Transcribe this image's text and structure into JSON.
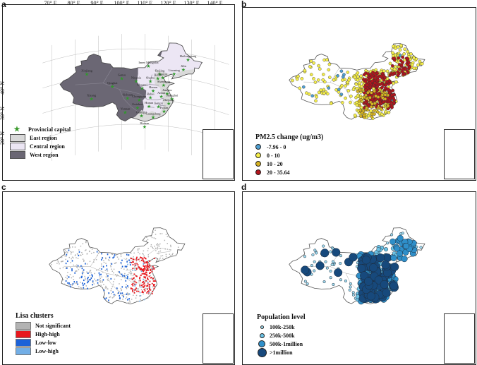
{
  "panels": {
    "a": {
      "label": "a",
      "lon_ticks": [
        "70° E",
        "80° E",
        "90° E",
        "100° E",
        "110° E",
        "120° E",
        "130° E",
        "140° E"
      ],
      "lat_ticks": [
        "40° N",
        "30° N",
        "20° N"
      ],
      "legend": {
        "capital": "Provincial capital",
        "east": "East region",
        "central": "Central region",
        "west": "West region"
      },
      "colors": {
        "east": "#d9d9d9",
        "central": "#ece6f4",
        "west": "#6b6774"
      },
      "provinces": [
        {
          "name": "Heilongjiang",
          "lon": 128.5,
          "lat": 47.8
        },
        {
          "name": "Jilin",
          "lon": 126.5,
          "lat": 43.6
        },
        {
          "name": "Liaoning",
          "lon": 122.5,
          "lat": 41.3
        },
        {
          "name": "Inner Mongolia",
          "lon": 111.5,
          "lat": 43.5
        },
        {
          "name": "Xinjiang",
          "lon": 85.0,
          "lat": 41.5
        },
        {
          "name": "Gansu",
          "lon": 100.0,
          "lat": 38.5
        },
        {
          "name": "Qinghai",
          "lon": 96.0,
          "lat": 35.5
        },
        {
          "name": "Xizang",
          "lon": 87.0,
          "lat": 31.5
        },
        {
          "name": "Ningxia",
          "lon": 106.2,
          "lat": 37.3
        },
        {
          "name": "Shaanxi",
          "lon": 108.8,
          "lat": 34.5
        },
        {
          "name": "Shanxi",
          "lon": 112.3,
          "lat": 37.5
        },
        {
          "name": "Hebei",
          "lon": 115.5,
          "lat": 38.8
        },
        {
          "name": "Beijing",
          "lon": 116.4,
          "lat": 40.6
        },
        {
          "name": "Tianjin",
          "lon": 117.6,
          "lat": 39.2
        },
        {
          "name": "Shandong",
          "lon": 118.0,
          "lat": 36.3
        },
        {
          "name": "Henan",
          "lon": 113.5,
          "lat": 33.8
        },
        {
          "name": "Jiangsu",
          "lon": 119.5,
          "lat": 33.2
        },
        {
          "name": "Shanghai",
          "lon": 121.6,
          "lat": 31.3
        },
        {
          "name": "Anhui",
          "lon": 117.0,
          "lat": 31.8
        },
        {
          "name": "Hubei",
          "lon": 112.3,
          "lat": 31.0
        },
        {
          "name": "Zhejiang",
          "lon": 120.2,
          "lat": 29.3
        },
        {
          "name": "Sichuan",
          "lon": 102.5,
          "lat": 30.5
        },
        {
          "name": "Chongqing",
          "lon": 107.5,
          "lat": 29.8
        },
        {
          "name": "Hunan",
          "lon": 111.7,
          "lat": 27.5
        },
        {
          "name": "Jiangxi",
          "lon": 115.8,
          "lat": 27.6
        },
        {
          "name": "Fujian",
          "lon": 118.2,
          "lat": 26.0
        },
        {
          "name": "Guizhou",
          "lon": 106.8,
          "lat": 26.7
        },
        {
          "name": "Yunnan",
          "lon": 101.5,
          "lat": 25.0
        },
        {
          "name": "Guangxi",
          "lon": 108.5,
          "lat": 23.6
        },
        {
          "name": "Guangdong",
          "lon": 113.5,
          "lat": 23.2
        },
        {
          "name": "Hainan",
          "lon": 109.8,
          "lat": 19.3
        }
      ]
    },
    "b": {
      "label": "b",
      "legend_title": "PM2.5 change (ug/m3)",
      "classes": [
        {
          "label": "-7.96 - 0",
          "color": "#4f9fd1"
        },
        {
          "label": "0 - 10",
          "color": "#f6ef4a"
        },
        {
          "label": "10 - 20",
          "color": "#d6b222"
        },
        {
          "label": "20 - 35.64",
          "color": "#b2141c"
        }
      ]
    },
    "c": {
      "label": "c",
      "legend_title": "Lisa clusters",
      "classes": [
        {
          "label": "Not significant",
          "color": "#b3b3b3"
        },
        {
          "label": "High-high",
          "color": "#e8181e"
        },
        {
          "label": "Low-low",
          "color": "#1c62d8"
        },
        {
          "label": "Low-high",
          "color": "#72aee6"
        }
      ]
    },
    "d": {
      "label": "d",
      "legend_title": "Population level",
      "classes": [
        {
          "label": "100k-250k",
          "color": "#9fdbf0",
          "size": 3
        },
        {
          "label": "250k-500k",
          "color": "#6cc3e6",
          "size": 5
        },
        {
          "label": "500k-1million",
          "color": "#2f8fc9",
          "size": 8
        },
        {
          "label": ">1million",
          "color": "#17497c",
          "size": 11
        }
      ]
    }
  }
}
